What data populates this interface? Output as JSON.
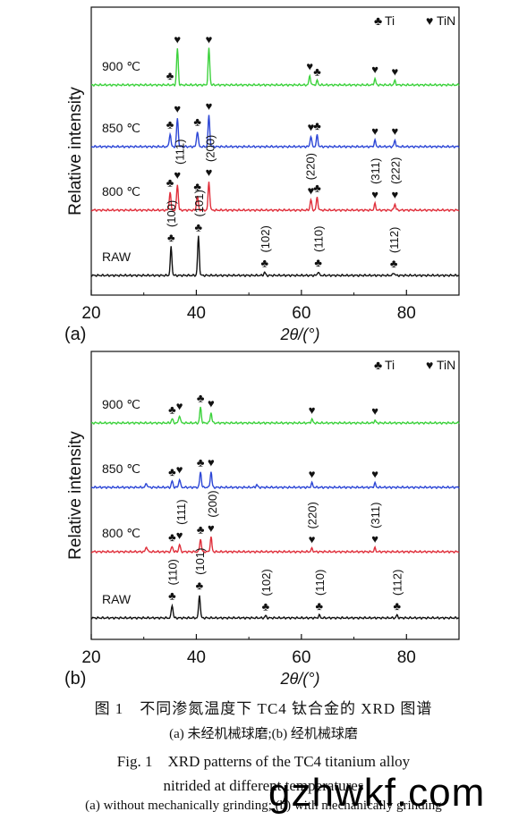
{
  "chart_data": [
    {
      "type": "line",
      "panel_label": "(a)",
      "xlabel": "2θ/(°)",
      "ylabel": "Relative intensity",
      "xlim": [
        20,
        90
      ],
      "xticks": [
        20,
        40,
        60,
        80
      ],
      "legend": [
        {
          "symbol": "♣",
          "label": "Ti"
        },
        {
          "symbol": "♥",
          "label": "TiN"
        }
      ],
      "legend_position": "top-right",
      "series": [
        {
          "name": "900 ℃",
          "color": "#3dd23d",
          "peaks": [
            {
              "x": 36.4,
              "h": 0.7
            },
            {
              "x": 42.4,
              "h": 0.7
            },
            {
              "x": 61.6,
              "h": 0.18
            },
            {
              "x": 63.0,
              "h": 0.08
            },
            {
              "x": 74.0,
              "h": 0.12
            },
            {
              "x": 77.8,
              "h": 0.08
            }
          ],
          "markers": [
            {
              "x": 35.0,
              "s": "♣"
            },
            {
              "x": 36.4,
              "s": "♥"
            },
            {
              "x": 42.4,
              "s": "♥"
            },
            {
              "x": 61.6,
              "s": "♥"
            },
            {
              "x": 63.0,
              "s": "♣"
            },
            {
              "x": 74.0,
              "s": "♥"
            },
            {
              "x": 77.8,
              "s": "♥"
            }
          ]
        },
        {
          "name": "850 ℃",
          "color": "#2d47d6",
          "peaks": [
            {
              "x": 35.0,
              "h": 0.25
            },
            {
              "x": 36.4,
              "h": 0.55
            },
            {
              "x": 40.2,
              "h": 0.3
            },
            {
              "x": 42.4,
              "h": 0.6
            },
            {
              "x": 61.8,
              "h": 0.2
            },
            {
              "x": 63.0,
              "h": 0.22
            },
            {
              "x": 74.0,
              "h": 0.12
            },
            {
              "x": 77.8,
              "h": 0.12
            }
          ],
          "markers": [
            {
              "x": 35.0,
              "s": "♣"
            },
            {
              "x": 36.4,
              "s": "♥"
            },
            {
              "x": 40.2,
              "s": "♣"
            },
            {
              "x": 42.4,
              "s": "♥"
            },
            {
              "x": 61.8,
              "s": "♥"
            },
            {
              "x": 63.0,
              "s": "♣"
            },
            {
              "x": 74.0,
              "s": "♥"
            },
            {
              "x": 77.8,
              "s": "♥"
            }
          ]
        },
        {
          "name": "800 ℃",
          "color": "#e0303c",
          "peaks": [
            {
              "x": 35.0,
              "h": 0.35
            },
            {
              "x": 36.4,
              "h": 0.5
            },
            {
              "x": 40.2,
              "h": 0.28
            },
            {
              "x": 42.4,
              "h": 0.55
            },
            {
              "x": 61.8,
              "h": 0.2
            },
            {
              "x": 63.0,
              "h": 0.25
            },
            {
              "x": 74.0,
              "h": 0.12
            },
            {
              "x": 77.8,
              "h": 0.12
            }
          ],
          "markers": [
            {
              "x": 35.0,
              "s": "♣"
            },
            {
              "x": 36.4,
              "s": "♥"
            },
            {
              "x": 40.2,
              "s": "♣"
            },
            {
              "x": 42.4,
              "s": "♥"
            },
            {
              "x": 61.8,
              "s": "♥"
            },
            {
              "x": 63.0,
              "s": "♣"
            },
            {
              "x": 74.0,
              "s": "♥"
            },
            {
              "x": 77.8,
              "s": "♥"
            }
          ],
          "hkl": [
            {
              "x": 36.8,
              "t": "(111)"
            },
            {
              "x": 42.6,
              "t": "(200)"
            },
            {
              "x": 61.6,
              "t": "(220)"
            },
            {
              "x": 74.0,
              "t": "(311)"
            },
            {
              "x": 77.8,
              "t": "(222)"
            }
          ]
        },
        {
          "name": "RAW",
          "color": "#111111",
          "peaks": [
            {
              "x": 35.2,
              "h": 0.55
            },
            {
              "x": 40.4,
              "h": 0.75
            },
            {
              "x": 53.0,
              "h": 0.06
            },
            {
              "x": 63.2,
              "h": 0.07
            },
            {
              "x": 77.6,
              "h": 0.05
            }
          ],
          "markers": [
            {
              "x": 35.2,
              "s": "♣"
            },
            {
              "x": 40.4,
              "s": "♣"
            },
            {
              "x": 53.0,
              "s": "♣"
            },
            {
              "x": 63.2,
              "s": "♣"
            },
            {
              "x": 77.6,
              "s": "♣"
            }
          ],
          "hkl": [
            {
              "x": 35.2,
              "t": "(100)"
            },
            {
              "x": 40.4,
              "t": "(101)"
            },
            {
              "x": 53.0,
              "t": "(102)"
            },
            {
              "x": 63.2,
              "t": "(110)"
            },
            {
              "x": 77.6,
              "t": "(112)"
            }
          ]
        }
      ]
    },
    {
      "type": "line",
      "panel_label": "(b)",
      "xlabel": "2θ/(°)",
      "ylabel": "Relative intensity",
      "xlim": [
        20,
        90
      ],
      "xticks": [
        20,
        40,
        60,
        80
      ],
      "legend": [
        {
          "symbol": "♣",
          "label": "Ti"
        },
        {
          "symbol": "♥",
          "label": "TiN"
        }
      ],
      "legend_position": "top-right",
      "series": [
        {
          "name": "900 ℃",
          "color": "#3dd23d",
          "peaks": [
            {
              "x": 35.4,
              "h": 0.08
            },
            {
              "x": 36.8,
              "h": 0.15
            },
            {
              "x": 40.8,
              "h": 0.3
            },
            {
              "x": 42.8,
              "h": 0.2
            },
            {
              "x": 62.0,
              "h": 0.07
            },
            {
              "x": 74.0,
              "h": 0.05
            }
          ],
          "markers": [
            {
              "x": 35.4,
              "s": "♣"
            },
            {
              "x": 36.8,
              "s": "♥"
            },
            {
              "x": 40.8,
              "s": "♣"
            },
            {
              "x": 42.8,
              "s": "♥"
            },
            {
              "x": 62.0,
              "s": "♥"
            },
            {
              "x": 74.0,
              "s": "♥"
            }
          ]
        },
        {
          "name": "850 ℃",
          "color": "#2d47d6",
          "peaks": [
            {
              "x": 30.5,
              "h": 0.08
            },
            {
              "x": 35.4,
              "h": 0.12
            },
            {
              "x": 36.8,
              "h": 0.16
            },
            {
              "x": 40.8,
              "h": 0.3
            },
            {
              "x": 42.8,
              "h": 0.3
            },
            {
              "x": 51.5,
              "h": 0.05
            },
            {
              "x": 62.0,
              "h": 0.08
            },
            {
              "x": 74.0,
              "h": 0.08
            }
          ],
          "markers": [
            {
              "x": 35.4,
              "s": "♣"
            },
            {
              "x": 36.8,
              "s": "♥"
            },
            {
              "x": 40.8,
              "s": "♣"
            },
            {
              "x": 42.8,
              "s": "♥"
            },
            {
              "x": 62.0,
              "s": "♥"
            },
            {
              "x": 74.0,
              "s": "♥"
            }
          ]
        },
        {
          "name": "800 ℃",
          "color": "#e0303c",
          "peaks": [
            {
              "x": 30.5,
              "h": 0.1
            },
            {
              "x": 35.4,
              "h": 0.1
            },
            {
              "x": 36.8,
              "h": 0.14
            },
            {
              "x": 40.8,
              "h": 0.25
            },
            {
              "x": 42.8,
              "h": 0.28
            },
            {
              "x": 62.0,
              "h": 0.06
            },
            {
              "x": 74.0,
              "h": 0.07
            }
          ],
          "markers": [
            {
              "x": 35.4,
              "s": "♣"
            },
            {
              "x": 36.8,
              "s": "♥"
            },
            {
              "x": 40.8,
              "s": "♣"
            },
            {
              "x": 42.8,
              "s": "♥"
            },
            {
              "x": 62.0,
              "s": "♥"
            },
            {
              "x": 74.0,
              "s": "♥"
            }
          ],
          "hkl": [
            {
              "x": 37.0,
              "t": "(111)"
            },
            {
              "x": 43.0,
              "t": "(200)"
            },
            {
              "x": 62.0,
              "t": "(220)"
            },
            {
              "x": 74.0,
              "t": "(311)"
            }
          ]
        },
        {
          "name": "RAW",
          "color": "#111111",
          "peaks": [
            {
              "x": 35.4,
              "h": 0.25
            },
            {
              "x": 40.6,
              "h": 0.45
            },
            {
              "x": 53.2,
              "h": 0.04
            },
            {
              "x": 63.4,
              "h": 0.05
            },
            {
              "x": 78.2,
              "h": 0.05
            }
          ],
          "markers": [
            {
              "x": 35.4,
              "s": "♣"
            },
            {
              "x": 40.6,
              "s": "♣"
            },
            {
              "x": 53.2,
              "s": "♣"
            },
            {
              "x": 63.4,
              "s": "♣"
            },
            {
              "x": 78.2,
              "s": "♣"
            }
          ],
          "hkl": [
            {
              "x": 35.4,
              "t": "(110)"
            },
            {
              "x": 40.6,
              "t": "(101)"
            },
            {
              "x": 53.2,
              "t": "(102)"
            },
            {
              "x": 63.4,
              "t": "(110)"
            },
            {
              "x": 78.2,
              "t": "(112)"
            }
          ]
        }
      ]
    }
  ],
  "caption": {
    "zh_title": "图 1　不同渗氮温度下 TC4 钛合金的 XRD 图谱",
    "zh_sub": "(a) 未经机械球磨;(b) 经机械球磨",
    "en_title": "Fig. 1　XRD patterns of the TC4 titanium alloy",
    "en_title2": "nitrided at different temperatures",
    "en_sub": "(a) without mechanically grinding; (b) with mechanically grinding"
  },
  "watermark": "gzhwkf.com"
}
